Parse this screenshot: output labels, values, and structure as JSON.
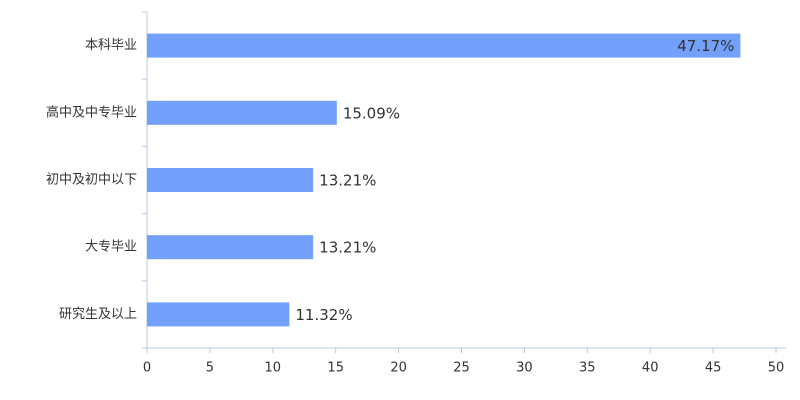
{
  "chart_data": {
    "type": "hbar",
    "categories": [
      "本科毕业",
      "高中及中专毕业",
      "初中及初中以下",
      "大专毕业",
      "研究生及以上"
    ],
    "values": [
      47.17,
      15.09,
      13.21,
      13.21,
      11.32
    ],
    "value_labels": [
      "47.17%",
      "15.09%",
      "13.21%",
      "13.21%",
      "11.32%"
    ],
    "color": "#73a0fa",
    "xlim": [
      0,
      50
    ],
    "xticks": [
      0,
      5,
      10,
      15,
      20,
      25,
      30,
      35,
      40,
      45,
      50
    ],
    "grid": false
  }
}
